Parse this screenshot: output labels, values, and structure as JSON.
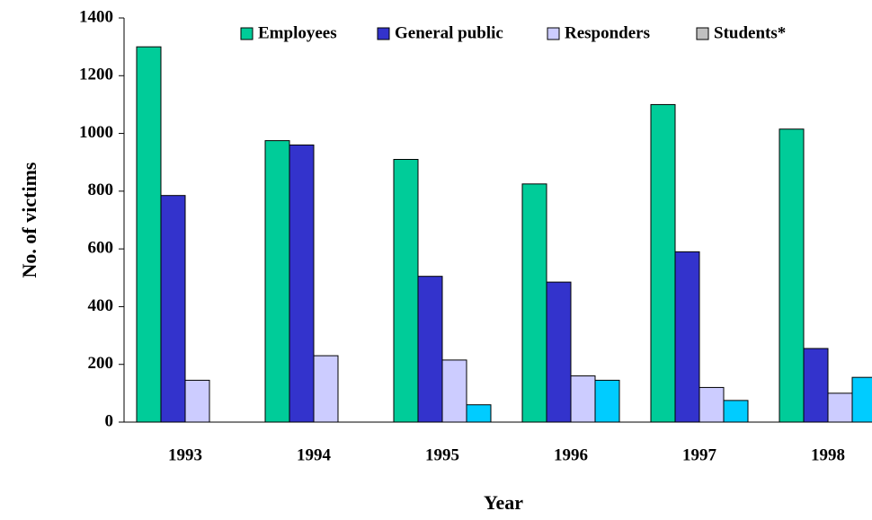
{
  "chart_data": {
    "type": "bar",
    "x_label": "Year",
    "y_label": "No. of victims",
    "categories": [
      "1993",
      "1994",
      "1995",
      "1996",
      "1997",
      "1998"
    ],
    "series": [
      {
        "name": "Employees",
        "color": "#00cc99",
        "values": [
          1300,
          975,
          910,
          825,
          1100,
          1015
        ]
      },
      {
        "name": "General public",
        "color": "#3333cc",
        "values": [
          785,
          960,
          505,
          485,
          590,
          255
        ]
      },
      {
        "name": "Responders",
        "color": "#ccccff",
        "values": [
          145,
          230,
          215,
          160,
          120,
          100
        ]
      },
      {
        "name": "Students*",
        "color": "#00ccff",
        "legend_color": "#c0c0c0",
        "values": [
          null,
          null,
          60,
          145,
          75,
          155
        ]
      }
    ],
    "ylim": [
      0,
      1400
    ],
    "yticks": [
      0,
      200,
      400,
      600,
      800,
      1000,
      1200,
      1400
    ],
    "legend": "top",
    "grid": false
  }
}
